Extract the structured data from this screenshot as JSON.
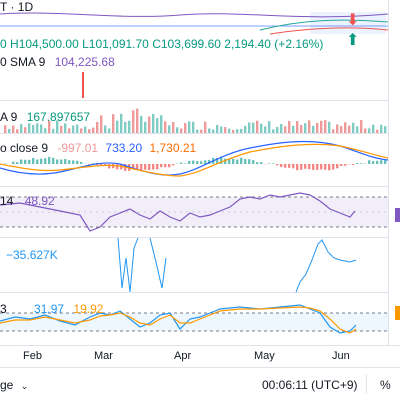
{
  "header": {
    "symbol_interval": "T · 1D"
  },
  "ohlc": {
    "open": "0",
    "high": "H104,500.00",
    "low": "L101,091.70",
    "close": "C103,699.60",
    "change": "2,194.40 (+2.16%)"
  },
  "sma": {
    "label": "0 SMA 9",
    "value": "104,225.68"
  },
  "volume": {
    "label": "A 9",
    "value": "167.897657"
  },
  "macd": {
    "label": "o close 9",
    "histogram": "-997.01",
    "macd": "733.20",
    "signal": "1,730.21"
  },
  "rsi": {
    "label": "14",
    "value": "48.92"
  },
  "osc": {
    "value": "−35.627K"
  },
  "stoch": {
    "label": "3",
    "k": "31.97",
    "d": "19.92"
  },
  "time_axis": [
    "Feb",
    "Mar",
    "Apr",
    "May",
    "Jun"
  ],
  "status": {
    "left": "ge",
    "clock": "00:06:11 (UTC+9)",
    "right": "%"
  },
  "colors": {
    "up": "#26a69a",
    "down": "#ef5350",
    "blue": "#2962ff",
    "purple": "#7e57c2",
    "orange": "#ff9800"
  }
}
